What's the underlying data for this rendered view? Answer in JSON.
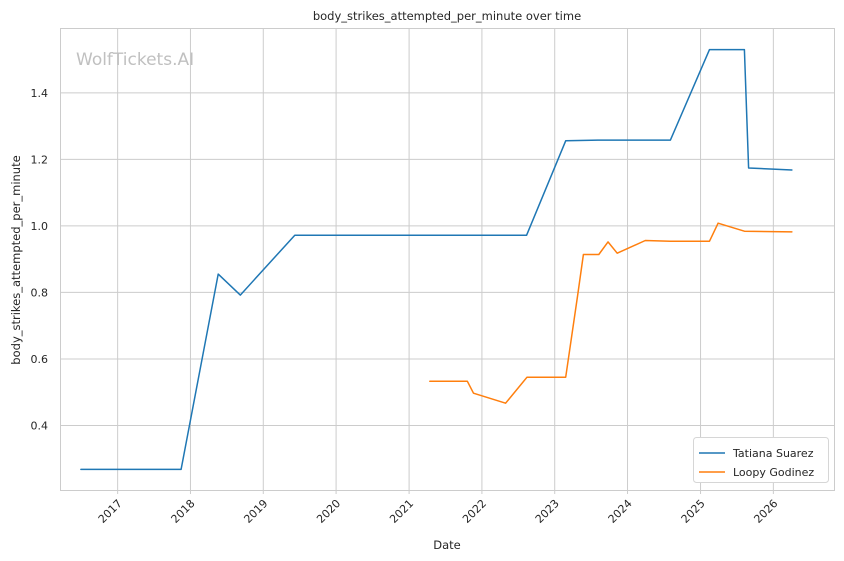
{
  "chart_data": {
    "type": "line",
    "title": "body_strikes_attempted_per_minute over time",
    "xlabel": "Date",
    "ylabel": "body_strikes_attempted_per_minute",
    "watermark": "WolfTickets.AI",
    "x_ticks": [
      "2017",
      "2018",
      "2019",
      "2020",
      "2021",
      "2022",
      "2023",
      "2024",
      "2025",
      "2026"
    ],
    "y_ticks": [
      "0.4",
      "0.6",
      "0.8",
      "1.0",
      "1.2",
      "1.4"
    ],
    "xlim": [
      "2016-03-18",
      "2026-11-01"
    ],
    "ylim": [
      0.206,
      1.595
    ],
    "grid": true,
    "legend_position": "bottom-right",
    "series": [
      {
        "name": "Tatiana Suarez",
        "color": "#1f77b4",
        "x": [
          "2016-07-01",
          "2017-11-15",
          "2018-05-20",
          "2018-09-08",
          "2019-06-08",
          "2022-08-13",
          "2023-02-25",
          "2023-08-05",
          "2024-08-03",
          "2025-02-15",
          "2025-08-09",
          "2025-08-30",
          "2026-04-04"
        ],
        "y": [
          0.268,
          0.268,
          0.855,
          0.792,
          0.972,
          0.972,
          1.256,
          1.258,
          1.258,
          1.53,
          1.53,
          1.174,
          1.168
        ]
      },
      {
        "name": "Loopy Godinez",
        "color": "#ff7f0e",
        "x": [
          "2021-04-15",
          "2021-10-20",
          "2021-11-20",
          "2022-04-30",
          "2022-08-15",
          "2023-02-25",
          "2023-04-25",
          "2023-05-25",
          "2023-08-10",
          "2023-09-25",
          "2023-11-10",
          "2024-03-30",
          "2024-08-03",
          "2025-02-15",
          "2025-03-30",
          "2025-08-09",
          "2026-04-04"
        ],
        "y": [
          0.533,
          0.533,
          0.497,
          0.467,
          0.545,
          0.545,
          0.788,
          0.914,
          0.914,
          0.952,
          0.918,
          0.956,
          0.954,
          0.954,
          1.008,
          0.984,
          0.982
        ]
      }
    ]
  }
}
